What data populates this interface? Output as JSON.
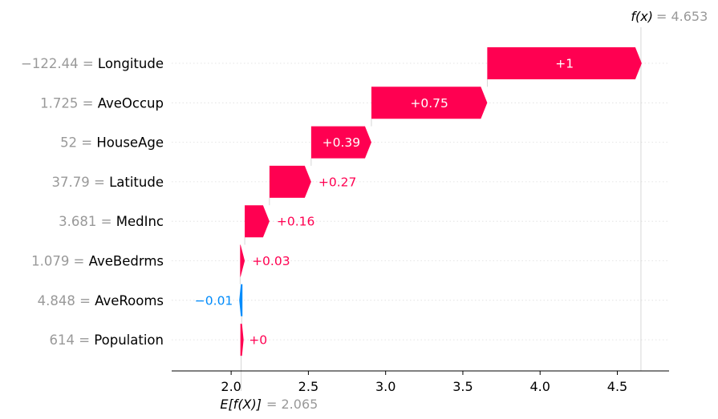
{
  "chart_data": {
    "type": "waterfall",
    "base_value": 2.065,
    "base_label": "E[f(X)]",
    "base_value_text": "= 2.065",
    "output_value": 4.653,
    "output_label": "f(x)",
    "output_value_text": "= 4.653",
    "xlim": [
      1.615,
      4.835
    ],
    "xticks": [
      2.0,
      2.5,
      3.0,
      3.5,
      4.0,
      4.5
    ],
    "xtick_labels": [
      "2.0",
      "2.5",
      "3.0",
      "3.5",
      "4.0",
      "4.5"
    ],
    "features": [
      {
        "value_text": "−122.44 =",
        "name": "Longitude",
        "contribution": 1.0,
        "label": "+1"
      },
      {
        "value_text": "1.725 =",
        "name": "AveOccup",
        "contribution": 0.75,
        "label": "+0.75"
      },
      {
        "value_text": "52 =",
        "name": "HouseAge",
        "contribution": 0.39,
        "label": "+0.39"
      },
      {
        "value_text": "37.79 =",
        "name": "Latitude",
        "contribution": 0.27,
        "label": "+0.27"
      },
      {
        "value_text": "3.681 =",
        "name": "MedInc",
        "contribution": 0.16,
        "label": "+0.16"
      },
      {
        "value_text": "1.079 =",
        "name": "AveBedrms",
        "contribution": 0.03,
        "label": "+0.03"
      },
      {
        "value_text": "4.848 =",
        "name": "AveRooms",
        "contribution": -0.01,
        "label": "−0.01"
      },
      {
        "value_text": "614 =",
        "name": "Population",
        "contribution": 0.003,
        "label": "+0"
      }
    ],
    "colors": {
      "positive": "#ff0051",
      "negative": "#008bfb",
      "muted": "#999999",
      "grid": "#cccccc"
    }
  }
}
